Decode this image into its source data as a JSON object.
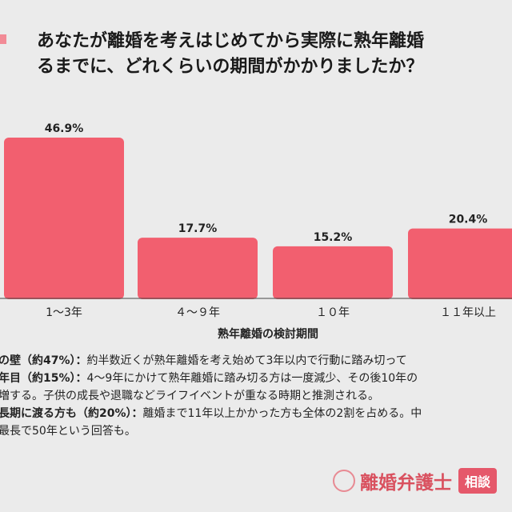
{
  "title_lines": [
    "あなたが離婚を考えはじめてから実際に熟年離婚",
    "るまでに、どれくらいの期間がかかりましたか？"
  ],
  "chart_data": {
    "type": "bar",
    "categories": [
      "1〜3年",
      "４〜９年",
      "１０年",
      "１１年以上"
    ],
    "values": [
      46.9,
      17.7,
      15.2,
      20.4
    ],
    "data_labels": [
      "46.9%",
      "17.7%",
      "15.2%",
      "20.4%"
    ],
    "xlabel": "熟年離婚の検討期間",
    "ylabel": "",
    "ylim": [
      0,
      50
    ],
    "grid": false,
    "bar_color": "#f25f6f"
  },
  "notes": [
    {
      "bold": "の壁（約47%）：",
      "text": "約半数近くが熟年離婚を考え始めて3年以内で行動に踏み切って"
    },
    {
      "bold": "年目（約15%）：",
      "text": "4〜9年にかけて熟年離婚に踏み切る方は一度減少、その後10年の"
    },
    {
      "bold": "",
      "text": "増する。子供の成長や退職などライフイベントが重なる時期と推測される。"
    },
    {
      "bold": "長期に渡る方も（約20%）：",
      "text": "離婚まで11年以上かかった方も全体の2割を占める。中"
    },
    {
      "bold": "",
      "text": "最長で50年という回答も。"
    }
  ],
  "logo": {
    "brand": "離婚弁護士",
    "badge": "相談"
  }
}
